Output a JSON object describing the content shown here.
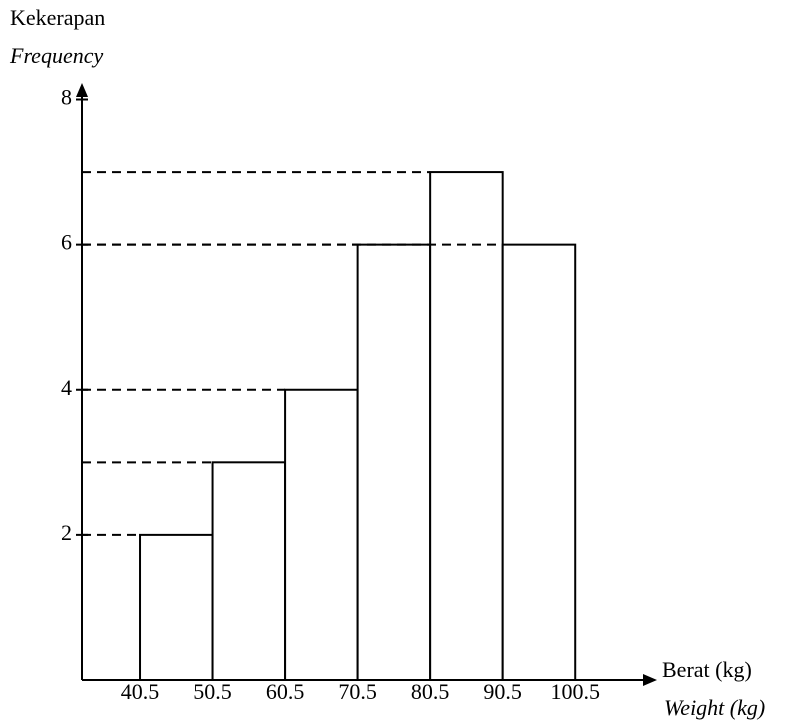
{
  "chart_data": {
    "type": "histogram",
    "y_label": "Kekerapan",
    "y_label_en": "Frequency",
    "x_label": "Berat (kg)",
    "x_label_en": "Weight (kg)",
    "bins": [
      40.5,
      50.5,
      60.5,
      70.5,
      80.5,
      90.5,
      100.5
    ],
    "values": [
      2,
      3,
      4,
      6,
      7,
      6
    ],
    "color": "#ffffff",
    "xlim": [
      32.5,
      111.5
    ],
    "ylim": [
      0,
      8.2
    ],
    "yticks": [
      2,
      4,
      6,
      8
    ],
    "guide_lines": true
  }
}
